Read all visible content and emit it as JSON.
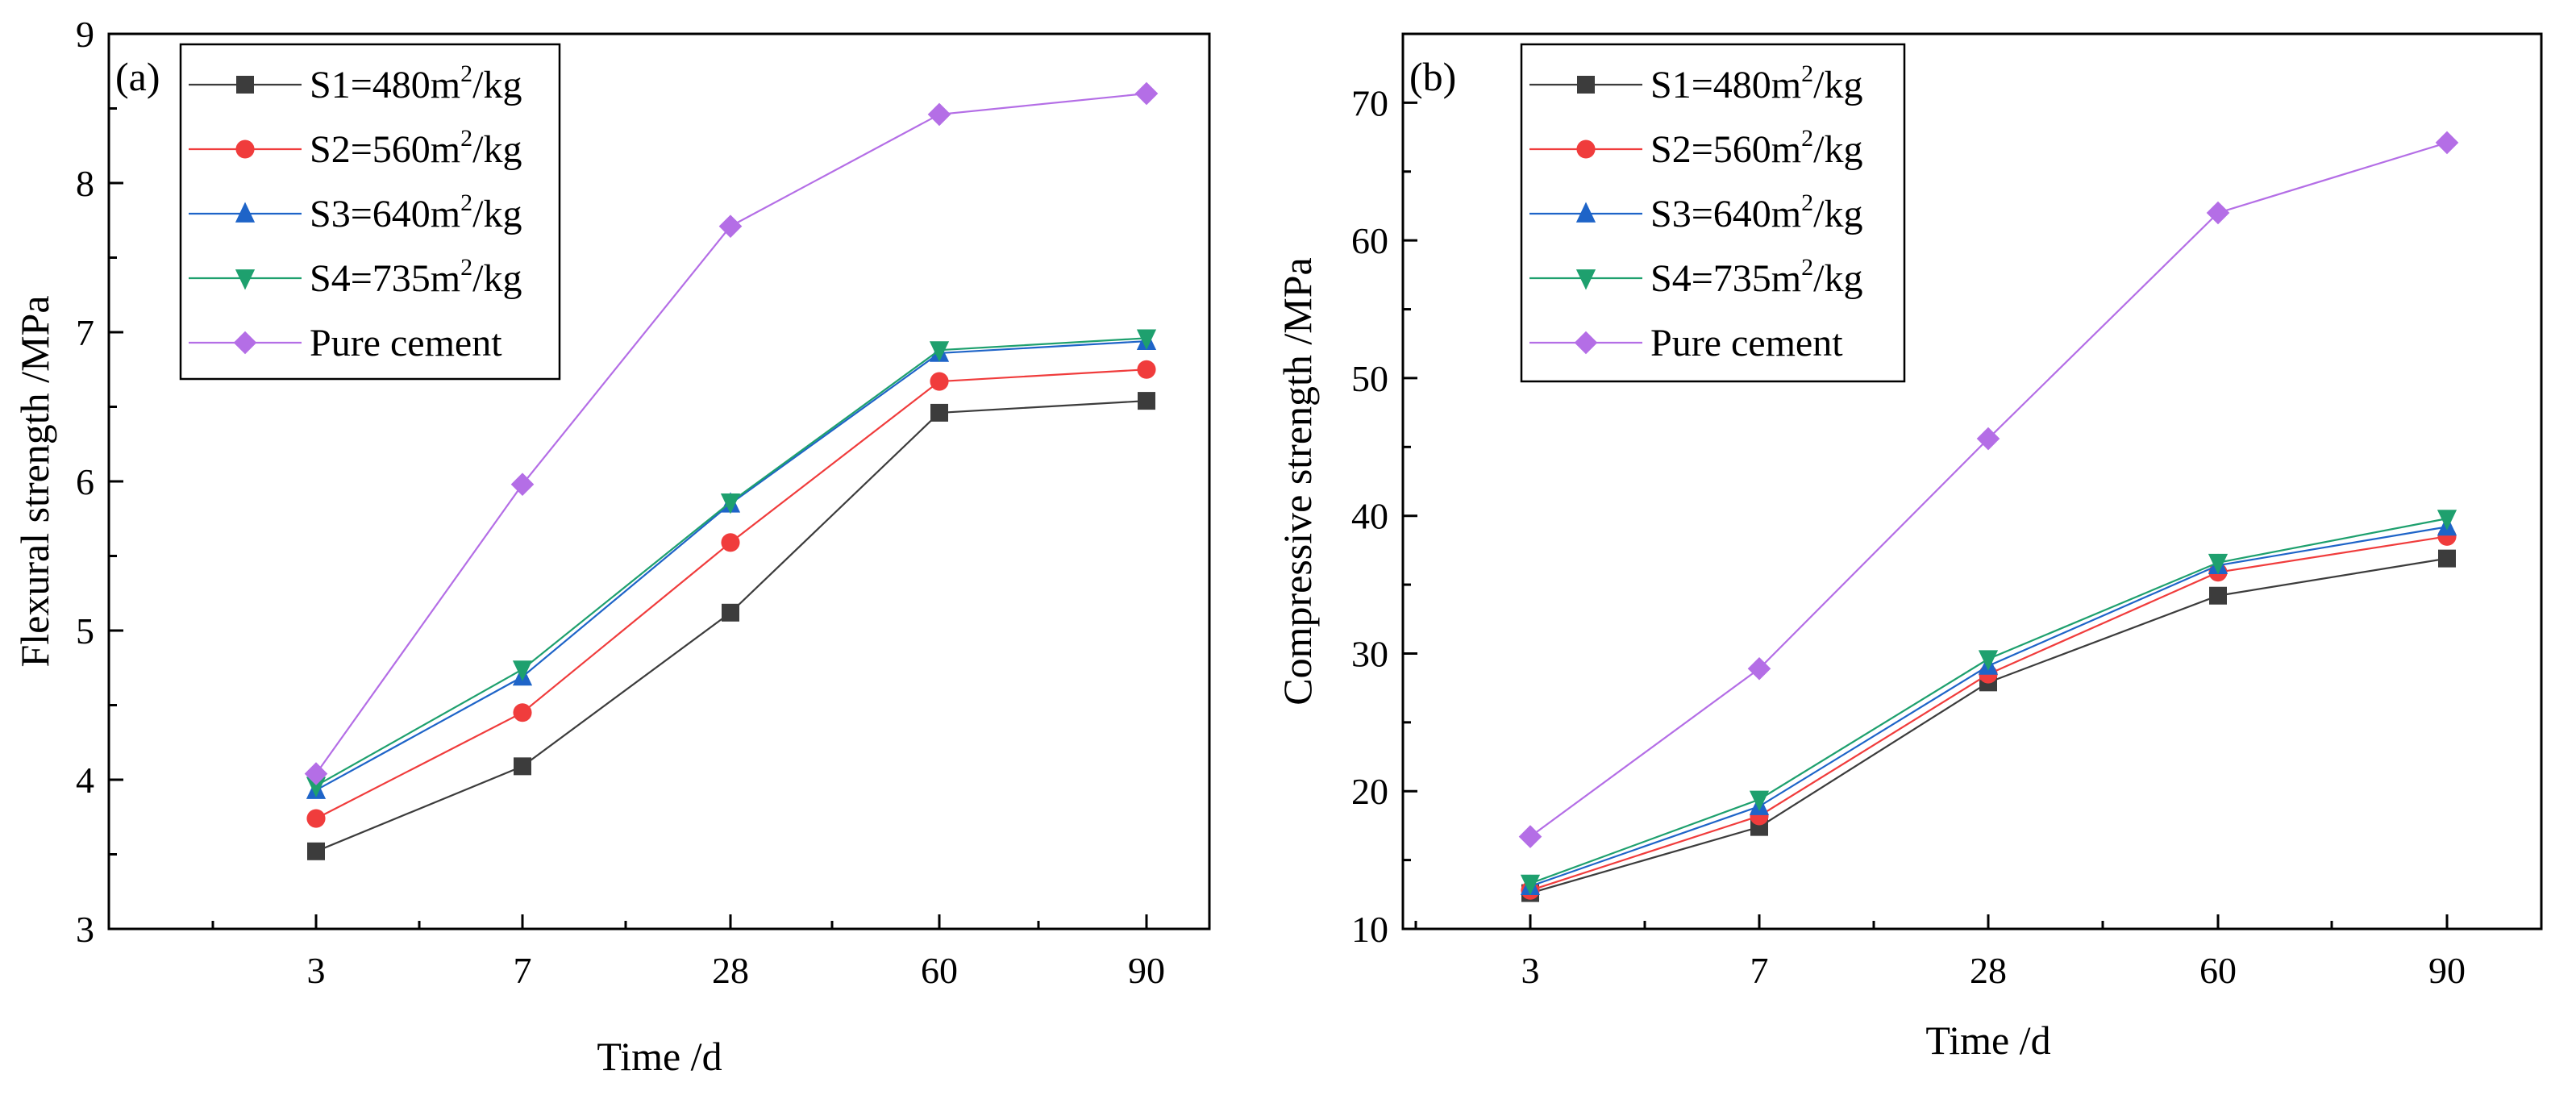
{
  "chart_data": [
    {
      "type": "line",
      "panel_label": "(a)",
      "xlabel": "Time /d",
      "ylabel": "Flexural strength /MPa",
      "categories": [
        "3",
        "7",
        "28",
        "60",
        "90"
      ],
      "ylim": [
        3,
        9
      ],
      "yticks": [
        "3",
        "4",
        "5",
        "6",
        "7",
        "8",
        "9"
      ],
      "legend_position": "top-left",
      "series": [
        {
          "name": "S1=480m²/kg",
          "label_main": "S1=480m",
          "label_sup": "2",
          "label_tail": "/kg",
          "color": "#3c3c3c",
          "marker": "square",
          "values": [
            3.52,
            4.09,
            5.12,
            6.46,
            6.54
          ]
        },
        {
          "name": "S2=560m²/kg",
          "label_main": "S2=560m",
          "label_sup": "2",
          "label_tail": "/kg",
          "color": "#f03c3c",
          "marker": "circle",
          "values": [
            3.74,
            4.45,
            5.59,
            6.67,
            6.75
          ]
        },
        {
          "name": "S3=640m²/kg",
          "label_main": "S3=640m",
          "label_sup": "2",
          "label_tail": "/kg",
          "color": "#1e64c8",
          "marker": "triangle-up",
          "values": [
            3.93,
            4.69,
            5.85,
            6.86,
            6.94
          ]
        },
        {
          "name": "S4=735m²/kg",
          "label_main": "S4=735m",
          "label_sup": "2",
          "label_tail": "/kg",
          "color": "#1ea06e",
          "marker": "triangle-down",
          "values": [
            3.96,
            4.74,
            5.86,
            6.88,
            6.96
          ]
        },
        {
          "name": "Pure cement",
          "label_main": "Pure cement",
          "label_sup": "",
          "label_tail": "",
          "color": "#b46ee6",
          "marker": "diamond",
          "values": [
            4.04,
            5.98,
            7.71,
            8.46,
            8.6
          ]
        }
      ]
    },
    {
      "type": "line",
      "panel_label": "(b)",
      "xlabel": "Time /d",
      "ylabel": "Compressive strength /MPa",
      "categories": [
        "3",
        "7",
        "28",
        "60",
        "90"
      ],
      "ylim": [
        10,
        75
      ],
      "yticks": [
        "10",
        "20",
        "30",
        "40",
        "50",
        "60",
        "70"
      ],
      "legend_position": "top-left",
      "series": [
        {
          "name": "S1=480m²/kg",
          "label_main": "S1=480m",
          "label_sup": "2",
          "label_tail": "/kg",
          "color": "#3c3c3c",
          "marker": "square",
          "values": [
            12.6,
            17.4,
            27.9,
            34.2,
            36.9
          ]
        },
        {
          "name": "S2=560m²/kg",
          "label_main": "S2=560m",
          "label_sup": "2",
          "label_tail": "/kg",
          "color": "#f03c3c",
          "marker": "circle",
          "values": [
            12.8,
            18.2,
            28.5,
            35.9,
            38.5
          ]
        },
        {
          "name": "S3=640m²/kg",
          "label_main": "S3=640m",
          "label_sup": "2",
          "label_tail": "/kg",
          "color": "#1e64c8",
          "marker": "triangle-up",
          "values": [
            13.1,
            18.9,
            29.1,
            36.4,
            39.2
          ]
        },
        {
          "name": "S4=735m²/kg",
          "label_main": "S4=735m",
          "label_sup": "2",
          "label_tail": "/kg",
          "color": "#1ea06e",
          "marker": "triangle-down",
          "values": [
            13.3,
            19.4,
            29.6,
            36.6,
            39.8
          ]
        },
        {
          "name": "Pure cement",
          "label_main": "Pure cement",
          "label_sup": "",
          "label_tail": "",
          "color": "#b46ee6",
          "marker": "diamond",
          "values": [
            16.7,
            28.9,
            45.6,
            62.0,
            67.1
          ]
        }
      ]
    }
  ]
}
